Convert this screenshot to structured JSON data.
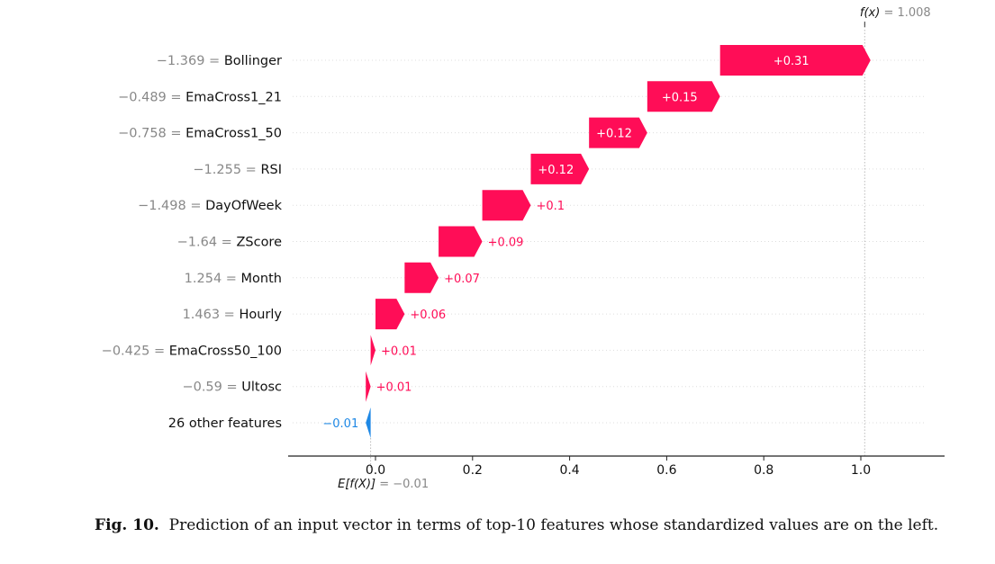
{
  "chart_data": {
    "type": "waterfall",
    "title": "",
    "xlabel": "",
    "ylabel": "",
    "xlim": [
      -0.18,
      1.18
    ],
    "x_ticks": [
      0.0,
      0.2,
      0.4,
      0.6,
      0.8,
      1.0
    ],
    "x_tick_labels": [
      "0.0",
      "0.2",
      "0.4",
      "0.6",
      "0.8",
      "1.0"
    ],
    "base_value": -0.01,
    "base_label": "E[f(X)]",
    "base_value_text": "= −0.01",
    "output_value": 1.008,
    "output_label": "f(x)",
    "output_value_text": "= 1.008",
    "features": [
      {
        "value_text": "−1.369",
        "name": "Bollinger",
        "shap": 0.31,
        "label": "+0.31"
      },
      {
        "value_text": "−0.489",
        "name": "EmaCross1_21",
        "shap": 0.15,
        "label": "+0.15"
      },
      {
        "value_text": "−0.758",
        "name": "EmaCross1_50",
        "shap": 0.12,
        "label": "+0.12"
      },
      {
        "value_text": "−1.255",
        "name": "RSI",
        "shap": 0.12,
        "label": "+0.12"
      },
      {
        "value_text": "−1.498",
        "name": "DayOfWeek",
        "shap": 0.1,
        "label": "+0.1"
      },
      {
        "value_text": "−1.64",
        "name": "ZScore",
        "shap": 0.09,
        "label": "+0.09"
      },
      {
        "value_text": "1.254",
        "name": "Month",
        "shap": 0.07,
        "label": "+0.07"
      },
      {
        "value_text": "1.463",
        "name": "Hourly",
        "shap": 0.06,
        "label": "+0.06"
      },
      {
        "value_text": "−0.425",
        "name": "EmaCross50_100",
        "shap": 0.01,
        "label": "+0.01"
      },
      {
        "value_text": "−0.59",
        "name": "Ultosc",
        "shap": 0.01,
        "label": "+0.01"
      },
      {
        "value_text": "",
        "name": "26 other features",
        "shap": -0.01,
        "label": "−0.01"
      }
    ],
    "colors": {
      "positive": "#ff0d57",
      "negative": "#1e88e5",
      "value_gray": "#888888"
    }
  },
  "caption": {
    "label": "Fig. 10.",
    "text": "Prediction of an input vector in terms of top-10 features whose standardized values are on the left."
  }
}
